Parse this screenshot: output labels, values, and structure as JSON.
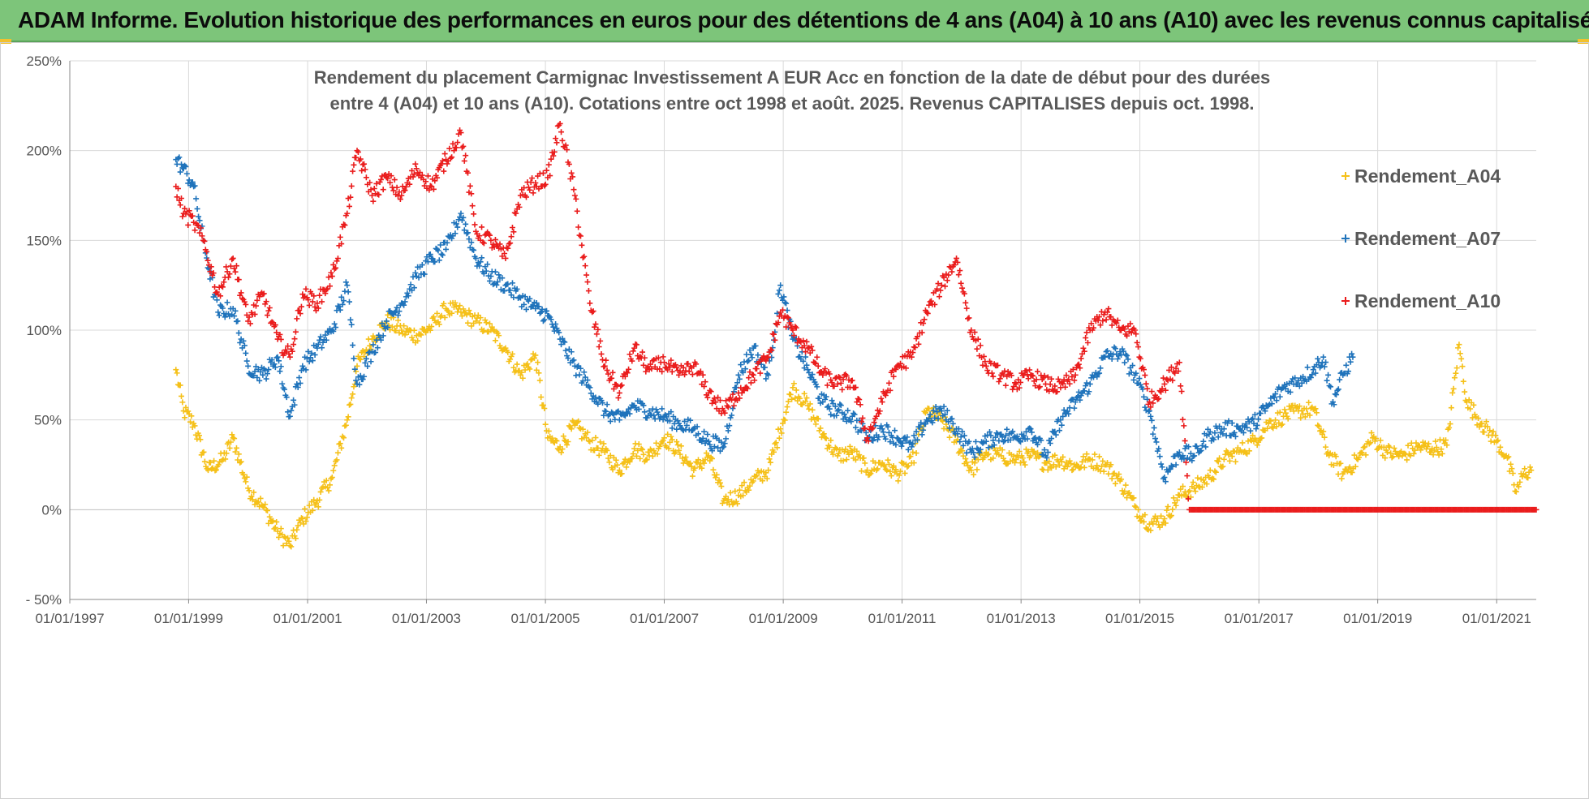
{
  "header": {
    "title": "ADAM Informe. Evolution historique des performances en euros pour des détentions de 4 ans (A04) à 10 ans (A10) avec les revenus connus capitalisés"
  },
  "colors": {
    "banner": "#7dc57a",
    "A04": "#f5c018",
    "A07": "#1f73bb",
    "A10": "#ea1c1c",
    "grid": "#d9d9d9"
  },
  "chart_data": {
    "type": "scatter",
    "title_lines": [
      "Rendement du placement Carmignac Investissement A EUR Acc en fonction de la date de début pour des durées",
      "entre 4 (A04) et 10 ans (A10). Cotations entre oct 1998 et août. 2025. Revenus CAPITALISES depuis oct. 1998."
    ],
    "marker": "+",
    "x_range": [
      "1997-01-01",
      "2021-09-01"
    ],
    "x_tick_labels": [
      "01/01/1997",
      "01/01/1999",
      "01/01/2001",
      "01/01/2003",
      "01/01/2005",
      "01/01/2007",
      "01/01/2009",
      "01/01/2011",
      "01/01/2013",
      "01/01/2015",
      "01/01/2017",
      "01/01/2019",
      "01/01/2021"
    ],
    "y_range": [
      -50,
      250
    ],
    "y_ticks": [
      -50,
      0,
      50,
      100,
      150,
      200,
      250
    ],
    "y_tick_labels": [
      "- 50%",
      "0%",
      "50%",
      "100%",
      "150%",
      "200%",
      "250%"
    ],
    "grid": true,
    "legend_position": "right",
    "series": [
      {
        "name": "Rendement_A04",
        "key": "A04",
        "points": [
          [
            "1998-10-15",
            78
          ],
          [
            "1998-12-01",
            55
          ],
          [
            "1999-02-01",
            48
          ],
          [
            "1999-05-01",
            22
          ],
          [
            "1999-08-01",
            28
          ],
          [
            "1999-10-01",
            40
          ],
          [
            "2000-01-01",
            12
          ],
          [
            "2000-04-01",
            2
          ],
          [
            "2000-07-01",
            -12
          ],
          [
            "2000-09-15",
            -20
          ],
          [
            "2000-12-01",
            -5
          ],
          [
            "2001-03-01",
            5
          ],
          [
            "2001-06-01",
            18
          ],
          [
            "2001-09-01",
            50
          ],
          [
            "2001-11-01",
            80
          ],
          [
            "2002-02-01",
            95
          ],
          [
            "2002-05-01",
            105
          ],
          [
            "2002-08-01",
            100
          ],
          [
            "2002-11-01",
            97
          ],
          [
            "2003-02-01",
            102
          ],
          [
            "2003-05-01",
            112
          ],
          [
            "2003-08-01",
            110
          ],
          [
            "2003-11-01",
            105
          ],
          [
            "2004-02-01",
            100
          ],
          [
            "2004-05-01",
            90
          ],
          [
            "2004-08-01",
            75
          ],
          [
            "2004-11-01",
            86
          ],
          [
            "2005-01-15",
            40
          ],
          [
            "2005-04-01",
            35
          ],
          [
            "2005-07-01",
            47
          ],
          [
            "2005-10-01",
            38
          ],
          [
            "2006-01-01",
            32
          ],
          [
            "2006-04-01",
            22
          ],
          [
            "2006-07-01",
            34
          ],
          [
            "2006-10-01",
            30
          ],
          [
            "2007-01-01",
            40
          ],
          [
            "2007-04-01",
            33
          ],
          [
            "2007-07-01",
            22
          ],
          [
            "2007-10-01",
            30
          ],
          [
            "2008-01-01",
            5
          ],
          [
            "2008-04-01",
            8
          ],
          [
            "2008-07-01",
            16
          ],
          [
            "2008-10-01",
            22
          ],
          [
            "2008-12-15",
            45
          ],
          [
            "2009-03-01",
            68
          ],
          [
            "2009-06-01",
            58
          ],
          [
            "2009-09-01",
            42
          ],
          [
            "2009-12-01",
            30
          ],
          [
            "2010-03-01",
            32
          ],
          [
            "2010-06-01",
            22
          ],
          [
            "2010-09-01",
            26
          ],
          [
            "2010-12-01",
            20
          ],
          [
            "2011-03-01",
            26
          ],
          [
            "2011-06-01",
            55
          ],
          [
            "2011-09-01",
            50
          ],
          [
            "2011-12-01",
            38
          ],
          [
            "2012-03-01",
            22
          ],
          [
            "2012-06-01",
            32
          ],
          [
            "2012-09-01",
            30
          ],
          [
            "2012-12-01",
            28
          ],
          [
            "2013-03-01",
            30
          ],
          [
            "2013-06-01",
            26
          ],
          [
            "2013-09-01",
            28
          ],
          [
            "2013-12-01",
            24
          ],
          [
            "2014-03-01",
            28
          ],
          [
            "2014-06-01",
            25
          ],
          [
            "2014-09-01",
            16
          ],
          [
            "2014-12-01",
            2
          ],
          [
            "2015-03-01",
            -8
          ],
          [
            "2015-06-01",
            -5
          ],
          [
            "2015-09-01",
            8
          ],
          [
            "2015-12-01",
            12
          ],
          [
            "2016-03-01",
            18
          ],
          [
            "2016-06-01",
            28
          ],
          [
            "2016-09-01",
            32
          ],
          [
            "2016-12-01",
            38
          ],
          [
            "2017-03-01",
            48
          ],
          [
            "2017-06-01",
            52
          ],
          [
            "2017-09-01",
            55
          ],
          [
            "2017-12-01",
            56
          ],
          [
            "2018-03-01",
            32
          ],
          [
            "2018-06-01",
            20
          ],
          [
            "2018-09-01",
            28
          ],
          [
            "2018-12-01",
            40
          ],
          [
            "2019-03-01",
            32
          ],
          [
            "2019-06-01",
            30
          ],
          [
            "2019-09-01",
            35
          ],
          [
            "2019-12-01",
            34
          ],
          [
            "2020-03-01",
            36
          ],
          [
            "2020-05-15",
            92
          ],
          [
            "2020-07-01",
            60
          ],
          [
            "2020-10-01",
            48
          ],
          [
            "2021-01-01",
            38
          ],
          [
            "2021-03-01",
            30
          ],
          [
            "2021-05-01",
            10
          ],
          [
            "2021-06-15",
            20
          ],
          [
            "2021-08-01",
            22
          ]
        ]
      },
      {
        "name": "Rendement_A07",
        "key": "A07",
        "points": [
          [
            "1998-10-15",
            195
          ],
          [
            "1998-12-01",
            190
          ],
          [
            "1999-02-01",
            180
          ],
          [
            "1999-04-01",
            150
          ],
          [
            "1999-07-01",
            110
          ],
          [
            "1999-10-01",
            112
          ],
          [
            "2000-01-01",
            80
          ],
          [
            "2000-04-01",
            75
          ],
          [
            "2000-07-01",
            85
          ],
          [
            "2000-09-15",
            52
          ],
          [
            "2000-12-01",
            80
          ],
          [
            "2001-03-01",
            90
          ],
          [
            "2001-06-01",
            100
          ],
          [
            "2001-09-01",
            125
          ],
          [
            "2001-11-01",
            70
          ],
          [
            "2002-02-01",
            88
          ],
          [
            "2002-05-01",
            105
          ],
          [
            "2002-08-01",
            115
          ],
          [
            "2002-11-01",
            130
          ],
          [
            "2003-02-01",
            140
          ],
          [
            "2003-05-01",
            145
          ],
          [
            "2003-08-01",
            165
          ],
          [
            "2003-11-01",
            140
          ],
          [
            "2004-02-01",
            130
          ],
          [
            "2004-05-01",
            125
          ],
          [
            "2004-08-01",
            118
          ],
          [
            "2004-11-01",
            112
          ],
          [
            "2005-01-15",
            108
          ],
          [
            "2005-04-01",
            95
          ],
          [
            "2005-07-01",
            80
          ],
          [
            "2005-10-01",
            68
          ],
          [
            "2006-01-01",
            55
          ],
          [
            "2006-04-01",
            50
          ],
          [
            "2006-07-01",
            58
          ],
          [
            "2006-10-01",
            55
          ],
          [
            "2007-01-01",
            52
          ],
          [
            "2007-04-01",
            48
          ],
          [
            "2007-07-01",
            45
          ],
          [
            "2007-10-01",
            38
          ],
          [
            "2008-01-01",
            35
          ],
          [
            "2008-04-01",
            75
          ],
          [
            "2008-07-01",
            90
          ],
          [
            "2008-10-01",
            75
          ],
          [
            "2008-12-15",
            125
          ],
          [
            "2009-03-01",
            95
          ],
          [
            "2009-06-01",
            78
          ],
          [
            "2009-09-01",
            60
          ],
          [
            "2009-12-01",
            55
          ],
          [
            "2010-03-01",
            52
          ],
          [
            "2010-06-01",
            40
          ],
          [
            "2010-09-01",
            45
          ],
          [
            "2010-12-01",
            40
          ],
          [
            "2011-03-01",
            35
          ],
          [
            "2011-06-01",
            50
          ],
          [
            "2011-09-01",
            55
          ],
          [
            "2011-12-01",
            45
          ],
          [
            "2012-03-01",
            32
          ],
          [
            "2012-06-01",
            38
          ],
          [
            "2012-09-01",
            42
          ],
          [
            "2012-12-01",
            40
          ],
          [
            "2013-03-01",
            45
          ],
          [
            "2013-06-01",
            30
          ],
          [
            "2013-09-01",
            50
          ],
          [
            "2013-12-01",
            60
          ],
          [
            "2014-03-01",
            70
          ],
          [
            "2014-06-01",
            85
          ],
          [
            "2014-09-01",
            88
          ],
          [
            "2014-12-01",
            75
          ],
          [
            "2015-03-01",
            55
          ],
          [
            "2015-06-01",
            18
          ],
          [
            "2015-09-01",
            32
          ],
          [
            "2015-12-01",
            30
          ],
          [
            "2016-03-01",
            42
          ],
          [
            "2016-06-01",
            45
          ],
          [
            "2016-09-01",
            45
          ],
          [
            "2016-12-01",
            48
          ],
          [
            "2017-03-01",
            58
          ],
          [
            "2017-06-01",
            68
          ],
          [
            "2017-09-01",
            72
          ],
          [
            "2017-12-01",
            78
          ],
          [
            "2018-02-01",
            85
          ],
          [
            "2018-04-01",
            60
          ],
          [
            "2018-06-01",
            75
          ],
          [
            "2018-08-01",
            85
          ]
        ]
      },
      {
        "name": "Rendement_A10",
        "key": "A10",
        "points": [
          [
            "1998-10-15",
            180
          ],
          [
            "1998-12-01",
            165
          ],
          [
            "1999-02-01",
            160
          ],
          [
            "1999-04-01",
            150
          ],
          [
            "1999-07-01",
            120
          ],
          [
            "1999-10-01",
            140
          ],
          [
            "2000-01-01",
            105
          ],
          [
            "2000-04-01",
            120
          ],
          [
            "2000-07-01",
            95
          ],
          [
            "2000-09-15",
            85
          ],
          [
            "2000-12-01",
            120
          ],
          [
            "2001-03-01",
            115
          ],
          [
            "2001-06-01",
            130
          ],
          [
            "2001-09-01",
            165
          ],
          [
            "2001-11-01",
            200
          ],
          [
            "2002-02-01",
            175
          ],
          [
            "2002-05-01",
            185
          ],
          [
            "2002-08-01",
            175
          ],
          [
            "2002-11-01",
            190
          ],
          [
            "2003-02-01",
            180
          ],
          [
            "2003-05-01",
            195
          ],
          [
            "2003-08-01",
            210
          ],
          [
            "2003-11-01",
            155
          ],
          [
            "2004-02-01",
            150
          ],
          [
            "2004-05-01",
            140
          ],
          [
            "2004-08-01",
            175
          ],
          [
            "2004-11-01",
            182
          ],
          [
            "2005-01-15",
            185
          ],
          [
            "2005-04-01",
            215
          ],
          [
            "2005-07-01",
            175
          ],
          [
            "2005-10-01",
            115
          ],
          [
            "2006-01-01",
            80
          ],
          [
            "2006-04-01",
            65
          ],
          [
            "2006-07-01",
            90
          ],
          [
            "2006-10-01",
            78
          ],
          [
            "2007-01-01",
            82
          ],
          [
            "2007-04-01",
            75
          ],
          [
            "2007-07-01",
            80
          ],
          [
            "2007-10-01",
            65
          ],
          [
            "2008-01-01",
            55
          ],
          [
            "2008-04-01",
            65
          ],
          [
            "2008-07-01",
            75
          ],
          [
            "2008-10-01",
            85
          ],
          [
            "2008-12-15",
            110
          ],
          [
            "2009-03-01",
            100
          ],
          [
            "2009-06-01",
            90
          ],
          [
            "2009-09-01",
            75
          ],
          [
            "2009-12-01",
            70
          ],
          [
            "2010-03-01",
            72
          ],
          [
            "2010-06-01",
            40
          ],
          [
            "2010-09-01",
            60
          ],
          [
            "2010-12-01",
            80
          ],
          [
            "2011-03-01",
            85
          ],
          [
            "2011-06-01",
            110
          ],
          [
            "2011-09-01",
            125
          ],
          [
            "2011-12-01",
            140
          ],
          [
            "2012-03-01",
            100
          ],
          [
            "2012-06-01",
            80
          ],
          [
            "2012-09-01",
            75
          ],
          [
            "2012-12-01",
            70
          ],
          [
            "2013-03-01",
            75
          ],
          [
            "2013-06-01",
            70
          ],
          [
            "2013-09-01",
            68
          ],
          [
            "2013-12-01",
            75
          ],
          [
            "2014-03-01",
            100
          ],
          [
            "2014-06-01",
            110
          ],
          [
            "2014-09-01",
            100
          ],
          [
            "2014-12-01",
            100
          ],
          [
            "2015-03-01",
            60
          ],
          [
            "2015-06-01",
            70
          ],
          [
            "2015-09-01",
            82
          ],
          [
            "2015-11-01",
            0
          ],
          [
            "2017-01-01",
            0
          ],
          [
            "2019-01-01",
            0
          ],
          [
            "2021-09-01",
            0
          ]
        ]
      }
    ]
  }
}
